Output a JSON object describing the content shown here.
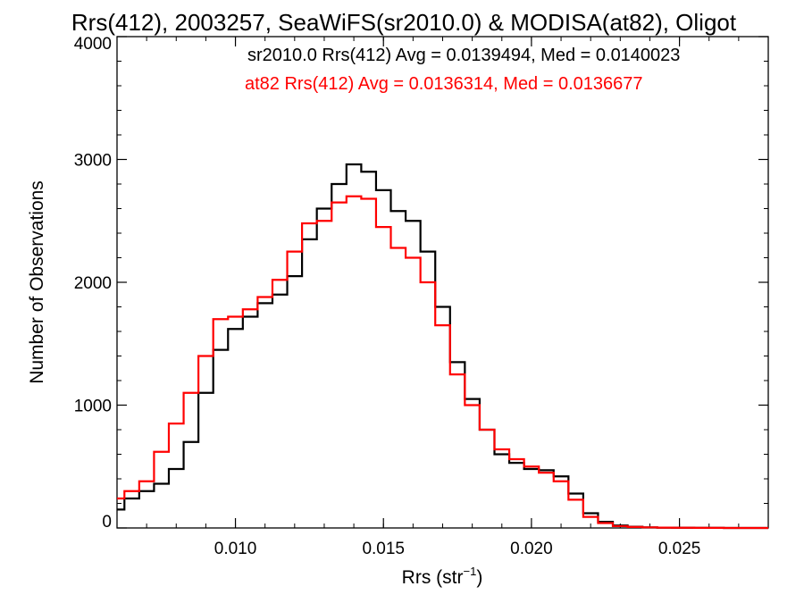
{
  "chart_data": {
    "type": "line",
    "title": "Rrs(412), 2003257, SeaWiFS(sr2010.0) & MODISA(at82), Oligot",
    "xlabel": "Rrs (str",
    "xlabel_sup": "−1",
    "xlabel_close": ")",
    "ylabel": "Number of Observations",
    "xlim": [
      0.006,
      0.028
    ],
    "ylim": [
      0,
      4000
    ],
    "x_ticks": [
      0.01,
      0.015,
      0.02,
      0.025
    ],
    "x_tick_labels": [
      "0.010",
      "0.015",
      "0.020",
      "0.025"
    ],
    "y_ticks": [
      0,
      1000,
      2000,
      3000,
      4000
    ],
    "y_tick_labels": [
      "0",
      "1000",
      "2000",
      "3000",
      "4000"
    ],
    "grid": false,
    "legend_position": "top-right",
    "legend": [
      "sr2010.0 Rrs(412) Avg = 0.0139494, Med = 0.0140023",
      "at82 Rrs(412) Avg = 0.0136314, Med = 0.0136677"
    ],
    "series": [
      {
        "color": "#000000",
        "x": [
          0.006,
          0.0065,
          0.007,
          0.0075,
          0.008,
          0.0085,
          0.009,
          0.0095,
          0.01,
          0.0105,
          0.011,
          0.0115,
          0.012,
          0.0125,
          0.013,
          0.0135,
          0.014,
          0.0145,
          0.015,
          0.0155,
          0.016,
          0.0165,
          0.017,
          0.0175,
          0.018,
          0.0185,
          0.019,
          0.0195,
          0.02,
          0.0205,
          0.021,
          0.0215,
          0.022,
          0.0225,
          0.023,
          0.0235,
          0.024,
          0.0245,
          0.025,
          0.026,
          0.027,
          0.028
        ],
        "values": [
          150,
          240,
          300,
          360,
          480,
          700,
          1100,
          1450,
          1620,
          1720,
          1830,
          1900,
          2050,
          2350,
          2600,
          2800,
          2960,
          2900,
          2750,
          2580,
          2500,
          2250,
          1800,
          1350,
          1050,
          800,
          600,
          530,
          480,
          470,
          420,
          280,
          120,
          50,
          20,
          10,
          5,
          3,
          2,
          1,
          0,
          0
        ]
      },
      {
        "color": "#ff0000",
        "x": [
          0.006,
          0.0065,
          0.007,
          0.0075,
          0.008,
          0.0085,
          0.009,
          0.0095,
          0.01,
          0.0105,
          0.011,
          0.0115,
          0.012,
          0.0125,
          0.013,
          0.0135,
          0.014,
          0.0145,
          0.015,
          0.0155,
          0.016,
          0.0165,
          0.017,
          0.0175,
          0.018,
          0.0185,
          0.019,
          0.0195,
          0.02,
          0.0205,
          0.021,
          0.0215,
          0.022,
          0.0225,
          0.023,
          0.0235,
          0.024,
          0.0245,
          0.025,
          0.026,
          0.027,
          0.028
        ],
        "values": [
          240,
          300,
          380,
          620,
          850,
          1100,
          1400,
          1700,
          1720,
          1780,
          1880,
          2020,
          2250,
          2480,
          2500,
          2650,
          2700,
          2680,
          2450,
          2280,
          2200,
          2000,
          1650,
          1250,
          1000,
          800,
          640,
          560,
          500,
          450,
          380,
          230,
          90,
          40,
          15,
          8,
          5,
          3,
          2,
          1,
          0,
          0
        ]
      }
    ]
  }
}
